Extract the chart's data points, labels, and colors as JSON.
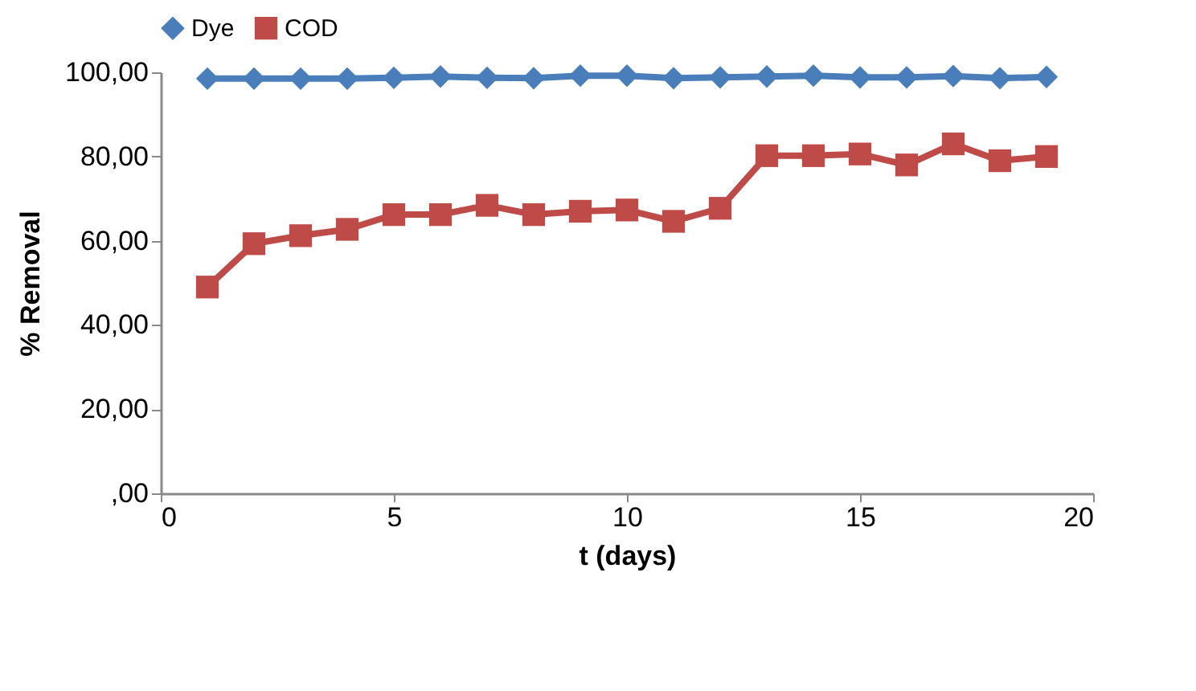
{
  "chart_data": {
    "type": "line",
    "xlabel": "t (days)",
    "ylabel": "% Removal",
    "x": [
      1,
      2,
      3,
      4,
      5,
      6,
      7,
      8,
      9,
      10,
      11,
      12,
      13,
      14,
      15,
      16,
      17,
      18,
      19
    ],
    "series": [
      {
        "name": "Dye",
        "color": "#4a7ebb",
        "marker": "diamond",
        "values": [
          98.5,
          98.5,
          98.5,
          98.5,
          98.7,
          99,
          98.7,
          98.6,
          99.2,
          99.2,
          98.6,
          98.8,
          99,
          99.2,
          98.8,
          98.8,
          99.1,
          98.6,
          98.9
        ]
      },
      {
        "name": "COD",
        "color": "#be4b48",
        "marker": "square",
        "values": [
          49,
          59.3,
          61.2,
          62.7,
          66.2,
          66.2,
          68.4,
          66.2,
          67,
          67.3,
          64.6,
          67.7,
          80.2,
          80.2,
          80.6,
          78,
          83,
          79,
          80
        ]
      }
    ],
    "xlim": [
      0,
      20
    ],
    "xticks": [
      0,
      5,
      10,
      15,
      20
    ],
    "ylim": [
      0,
      100
    ],
    "yticks": [
      {
        "value": 0,
        "label": ",00"
      },
      {
        "value": 20,
        "label": "20,00"
      },
      {
        "value": 40,
        "label": "40,00"
      },
      {
        "value": 60,
        "label": "60,00"
      },
      {
        "value": 80,
        "label": "80,00"
      },
      {
        "value": 100,
        "label": "100,00"
      }
    ],
    "grid": false,
    "legend": "top",
    "line_style": "solid"
  }
}
